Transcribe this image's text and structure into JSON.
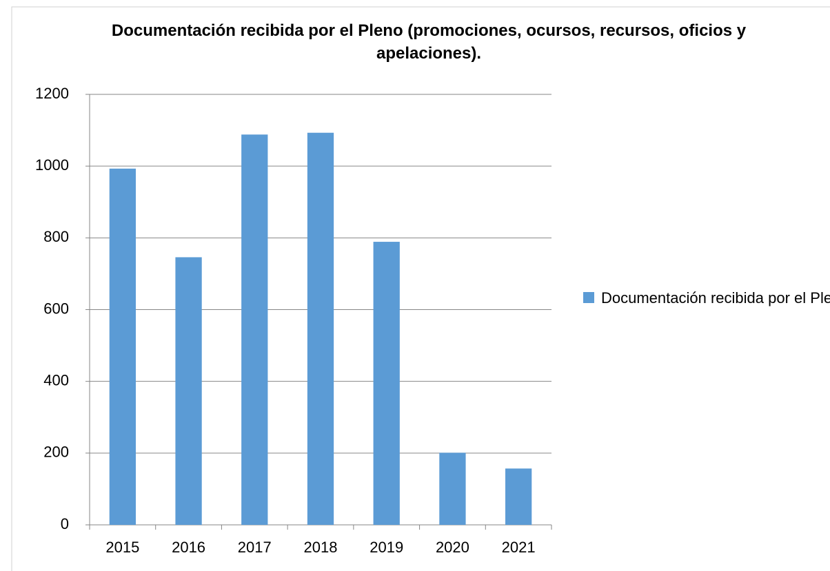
{
  "chart_data": {
    "type": "bar",
    "title": "Documentación recibida por el Pleno (promociones, ocursos, recursos, oficios y apelaciones).",
    "categories": [
      "2015",
      "2016",
      "2017",
      "2018",
      "2019",
      "2020",
      "2021"
    ],
    "series": [
      {
        "name": "Documentación recibida por el Pleno",
        "color": "#5b9bd5",
        "values": [
          993,
          746,
          1088,
          1093,
          789,
          201,
          157
        ]
      }
    ],
    "ylim": [
      0,
      1200
    ],
    "yticks": [
      0,
      200,
      400,
      600,
      800,
      1000,
      1200
    ],
    "grid": true,
    "legend": "right"
  }
}
